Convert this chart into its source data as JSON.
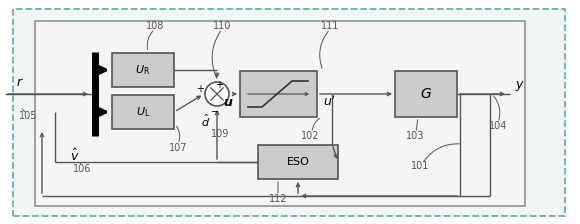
{
  "fig_width": 5.8,
  "fig_height": 2.24,
  "dpi": 100,
  "bg_color": "white",
  "outer_dash_color": "#7fbfbf",
  "inner_solid_color": "#888888",
  "block_face": "#cccccc",
  "block_edge": "#555555",
  "line_color": "#555555",
  "thick_color": "#111111",
  "label_color": "#555555"
}
